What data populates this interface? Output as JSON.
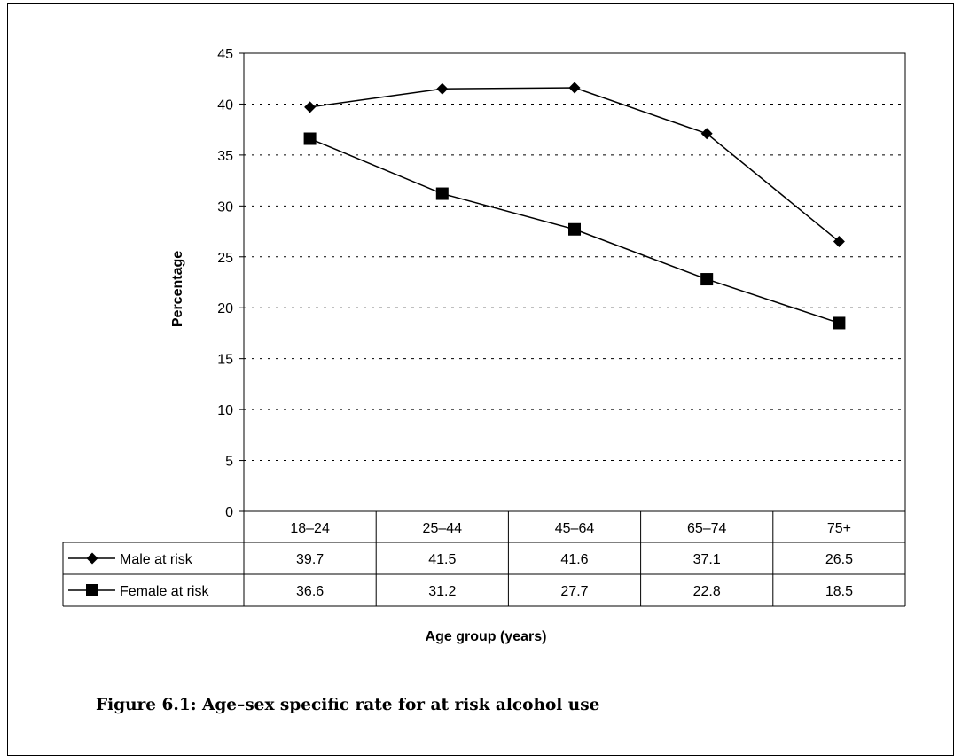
{
  "caption": "Figure 6.1: Age–sex specific rate for at risk alcohol use",
  "chart_data": {
    "type": "line",
    "categories": [
      "18–24",
      "25–44",
      "45–64",
      "65–74",
      "75+"
    ],
    "series": [
      {
        "name": "Male at risk",
        "values": [
          39.7,
          41.5,
          41.6,
          37.1,
          26.5
        ],
        "marker": "diamond",
        "color": "#000000"
      },
      {
        "name": "Female at risk",
        "values": [
          36.6,
          31.2,
          27.7,
          22.8,
          18.5
        ],
        "marker": "square",
        "color": "#000000"
      }
    ],
    "ylabel": "Percentage",
    "xlabel": "Age group (years)",
    "ylim": [
      0,
      45
    ],
    "yticks": [
      0,
      5,
      10,
      15,
      20,
      25,
      30,
      35,
      40,
      45
    ],
    "grid": "horizontal-dashed",
    "data_table": true
  }
}
